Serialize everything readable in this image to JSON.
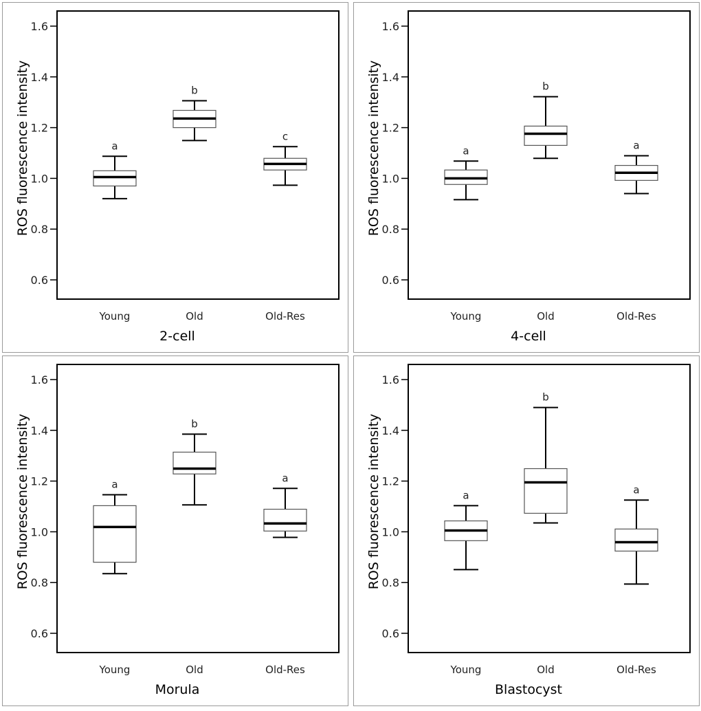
{
  "chart_data": [
    {
      "type": "box",
      "title": "2-cell",
      "xlabel": "2-cell",
      "ylabel": "ROS fluorescence intensity",
      "ylim": [
        0.55,
        1.66
      ],
      "yticks": [
        "0.6",
        "0.8",
        "1.0",
        "1.2",
        "1.4",
        "1.6"
      ],
      "categories": [
        "Young",
        "Old",
        "Old-Res"
      ],
      "boxes": [
        {
          "min": 0.92,
          "q1": 0.97,
          "median": 1.005,
          "q3": 1.03,
          "max": 1.087,
          "label": "a"
        },
        {
          "min": 1.149,
          "q1": 1.2,
          "median": 1.236,
          "q3": 1.268,
          "max": 1.306,
          "label": "b"
        },
        {
          "min": 0.973,
          "q1": 1.033,
          "median": 1.057,
          "q3": 1.079,
          "max": 1.125,
          "label": "c"
        }
      ]
    },
    {
      "type": "box",
      "title": "4-cell",
      "xlabel": "4-cell",
      "ylabel": "ROS fluorescence intensity",
      "ylim": [
        0.55,
        1.66
      ],
      "yticks": [
        "0.6",
        "0.8",
        "1.0",
        "1.2",
        "1.4",
        "1.6"
      ],
      "categories": [
        "Young",
        "Old",
        "Old-Res"
      ],
      "boxes": [
        {
          "min": 0.916,
          "q1": 0.976,
          "median": 1.0,
          "q3": 1.033,
          "max": 1.068,
          "label": "a"
        },
        {
          "min": 1.079,
          "q1": 1.13,
          "median": 1.176,
          "q3": 1.206,
          "max": 1.322,
          "label": "b"
        },
        {
          "min": 0.94,
          "q1": 0.992,
          "median": 1.022,
          "q3": 1.051,
          "max": 1.089,
          "label": "a"
        }
      ]
    },
    {
      "type": "box",
      "title": "Morula",
      "xlabel": "Morula",
      "ylabel": "ROS fluorescence intensity",
      "ylim": [
        0.55,
        1.66
      ],
      "yticks": [
        "0.6",
        "0.8",
        "1.0",
        "1.2",
        "1.4",
        "1.6"
      ],
      "categories": [
        "Young",
        "Old",
        "Old-Res"
      ],
      "boxes": [
        {
          "min": 0.835,
          "q1": 0.88,
          "median": 1.019,
          "q3": 1.103,
          "max": 1.146,
          "label": "a"
        },
        {
          "min": 1.106,
          "q1": 1.228,
          "median": 1.249,
          "q3": 1.314,
          "max": 1.385,
          "label": "b"
        },
        {
          "min": 0.978,
          "q1": 1.003,
          "median": 1.033,
          "q3": 1.089,
          "max": 1.171,
          "label": "a"
        }
      ]
    },
    {
      "type": "box",
      "title": "Blastocyst",
      "xlabel": "Blastocyst",
      "ylabel": "ROS fluorescence intensity",
      "ylim": [
        0.55,
        1.66
      ],
      "yticks": [
        "0.6",
        "0.8",
        "1.0",
        "1.2",
        "1.4",
        "1.6"
      ],
      "categories": [
        "Young",
        "Old",
        "Old-Res"
      ],
      "boxes": [
        {
          "min": 0.851,
          "q1": 0.965,
          "median": 1.005,
          "q3": 1.043,
          "max": 1.103,
          "label": "a"
        },
        {
          "min": 1.035,
          "q1": 1.073,
          "median": 1.195,
          "q3": 1.249,
          "max": 1.49,
          "label": "b"
        },
        {
          "min": 0.794,
          "q1": 0.924,
          "median": 0.959,
          "q3": 1.011,
          "max": 1.125,
          "label": "a"
        }
      ]
    }
  ]
}
